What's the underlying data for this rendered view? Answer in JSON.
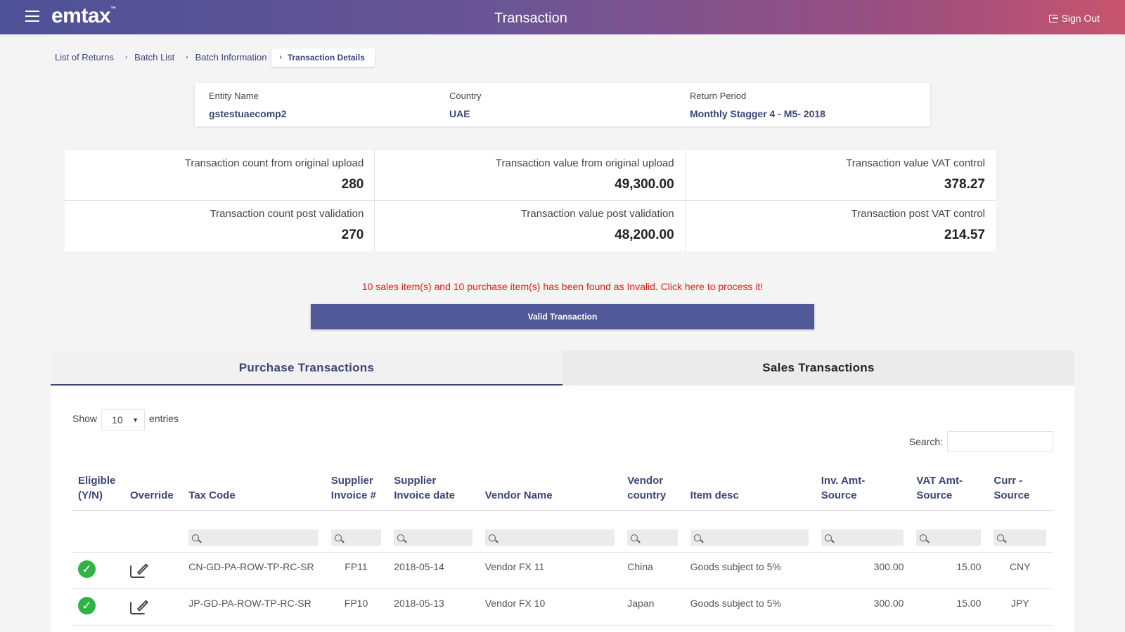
{
  "header": {
    "logo": "emtax",
    "logo_tm": "™",
    "title": "Transaction",
    "signout_label": "Sign Out"
  },
  "breadcrumb": {
    "items": [
      "List of Returns",
      "Batch List",
      "Batch Information"
    ],
    "active": "Transaction Details",
    "separator": "›"
  },
  "entity": {
    "name_label": "Entity Name",
    "name_value": "gstestuaecomp2",
    "country_label": "Country",
    "country_value": "UAE",
    "period_label": "Return Period",
    "period_value": "Monthly Stagger 4 - M5- 2018"
  },
  "stats": [
    {
      "label": "Transaction count from original upload",
      "value": "280"
    },
    {
      "label": "Transaction value from original upload",
      "value": "49,300.00"
    },
    {
      "label": "Transaction value VAT control",
      "value": "378.27"
    },
    {
      "label": "Transaction count post validation",
      "value": "270"
    },
    {
      "label": "Transaction value post validation",
      "value": "48,200.00"
    },
    {
      "label": "Transaction post VAT control",
      "value": "214.57"
    }
  ],
  "invalid_message": "10 sales item(s) and 10 purchase item(s) has been found as Invalid. Click here to process it!",
  "valid_button_label": "Valid Transaction",
  "tabs": [
    {
      "label": "Purchase Transactions",
      "active": true
    },
    {
      "label": "Sales Transactions",
      "active": false
    }
  ],
  "table_controls": {
    "show_label": "Show",
    "entries_value": "10",
    "entries_label": "entries",
    "search_label": "Search:"
  },
  "columns": [
    [
      "Eligible",
      "(Y/N)"
    ],
    [
      "",
      "Override"
    ],
    [
      "",
      "Tax Code"
    ],
    [
      "Supplier",
      "Invoice #"
    ],
    [
      "Supplier",
      "Invoice date"
    ],
    [
      "",
      "Vendor Name"
    ],
    [
      "Vendor",
      "country"
    ],
    [
      "",
      "Item desc"
    ],
    [
      "Inv. Amt-",
      "Source"
    ],
    [
      "VAT Amt-",
      "Source"
    ],
    [
      "Curr -",
      "Source"
    ]
  ],
  "rows": [
    {
      "tax_code": "CN-GD-PA-ROW-TP-RC-SR",
      "invoice_no": "FP11",
      "invoice_date": "2018-05-14",
      "vendor_name": "Vendor FX 11",
      "vendor_country": "China",
      "item_desc": "Goods subject to 5%",
      "inv_amt": "300.00",
      "vat_amt": "15.00",
      "currency": "CNY"
    },
    {
      "tax_code": "JP-GD-PA-ROW-TP-RC-SR",
      "invoice_no": "FP10",
      "invoice_date": "2018-05-13",
      "vendor_name": "Vendor FX 10",
      "vendor_country": "Japan",
      "item_desc": "Goods subject to 5%",
      "inv_amt": "300.00",
      "vat_amt": "15.00",
      "currency": "JPY"
    }
  ],
  "colors": {
    "accent": "#3d4576",
    "button": "#525998",
    "error": "#e02020",
    "eligible": "#2fb344"
  }
}
